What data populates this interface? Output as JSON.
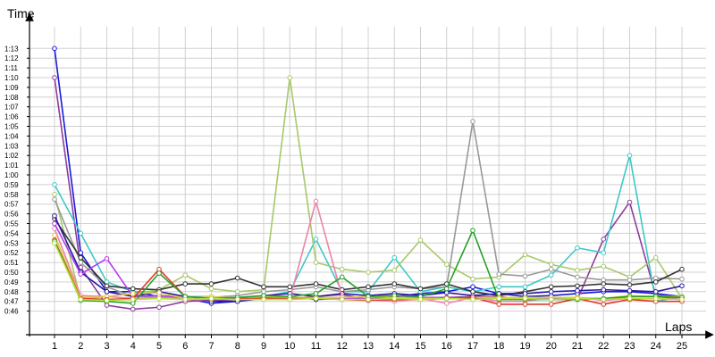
{
  "chart_data": {
    "type": "line",
    "xlabel": "Laps",
    "ylabel": "Time",
    "x": [
      1,
      2,
      3,
      4,
      5,
      6,
      7,
      8,
      9,
      10,
      11,
      12,
      13,
      14,
      15,
      16,
      17,
      18,
      19,
      20,
      21,
      22,
      23,
      24,
      25
    ],
    "y_ticks": [
      "0:46",
      "0:47",
      "0:48",
      "0:49",
      "0:50",
      "0:51",
      "0:52",
      "0:53",
      "0:54",
      "0:55",
      "0:56",
      "0:57",
      "0:58",
      "0:59",
      "1:00",
      "1:01",
      "1:02",
      "1:03",
      "1:04",
      "1:05",
      "1:06",
      "1:07",
      "1:08",
      "1:09",
      "1:10",
      "1:11",
      "1:12",
      "1:13"
    ],
    "ylim_seconds": [
      45,
      74
    ],
    "grid": true,
    "legend": "none",
    "series": [
      {
        "color": "#1a1ad8",
        "values": [
          73,
          52,
          48,
          48,
          47.5,
          47.3,
          46.8,
          47,
          47.3,
          47.5,
          47.2,
          47.3,
          47.2,
          47.5,
          47.8,
          48,
          48.5,
          47.8,
          47.5,
          47.6,
          47.8,
          48,
          48,
          47.8,
          47.5
        ]
      },
      {
        "color": "#8e3c9e",
        "values": [
          70,
          50.5,
          46.6,
          46.2,
          46.4,
          47,
          47.1,
          47.2,
          47.5,
          47.3,
          47.5,
          47.7,
          47.2,
          47.3,
          47.4,
          47.4,
          47.5,
          47.5,
          47.2,
          47.3,
          47.2,
          53.4,
          57.2,
          47.6,
          47.5
        ]
      },
      {
        "color": "#3cc8c8",
        "values": [
          59,
          54,
          49,
          48,
          48,
          47.5,
          47.5,
          47.3,
          47.5,
          48,
          53.4,
          48,
          48,
          51.5,
          48,
          48.5,
          48,
          48.5,
          48.5,
          49.7,
          52.5,
          52,
          62,
          47,
          47.5
        ]
      },
      {
        "color": "#a8c86a",
        "values": [
          58,
          47.2,
          47.5,
          47.8,
          48.2,
          49.7,
          48.3,
          48,
          48.2,
          70,
          51,
          50.3,
          50,
          50.2,
          53.3,
          50.8,
          49.3,
          49.5,
          51.8,
          50.8,
          50.2,
          50.6,
          49.5,
          51.5,
          47.3
        ]
      },
      {
        "color": "#999999",
        "values": [
          57.5,
          51,
          48.5,
          47.5,
          47.5,
          47.3,
          47.4,
          47.6,
          48,
          48.2,
          48.5,
          48,
          48.2,
          48.5,
          48.3,
          48.5,
          65.5,
          49.8,
          49.6,
          50.3,
          49.5,
          49.2,
          49.2,
          49.4,
          49.3
        ]
      },
      {
        "color": "#333333",
        "values": [
          55.5,
          51.5,
          48.6,
          48.3,
          48.2,
          48.8,
          48.8,
          49.4,
          48.5,
          48.5,
          48.8,
          48.2,
          48.5,
          48.8,
          48.3,
          48.8,
          48,
          47.6,
          48,
          48.5,
          48.6,
          48.8,
          48.7,
          49,
          50.3
        ]
      },
      {
        "color": "#2a1aa0",
        "values": [
          55.8,
          50,
          48,
          47.5,
          48,
          47.5,
          47,
          47,
          47.6,
          47.8,
          47.5,
          47.8,
          47.6,
          47.8,
          47.6,
          47.9,
          47.6,
          47.8,
          47.8,
          48,
          48.1,
          48.2,
          48.1,
          48,
          48.6
        ]
      },
      {
        "color": "#ee82aa",
        "values": [
          54.5,
          47.6,
          47.5,
          47.3,
          47.4,
          47.2,
          47.2,
          47.3,
          47.3,
          47.2,
          57.3,
          47.5,
          47.2,
          47,
          47.3,
          46.8,
          47.4,
          47,
          47,
          47.4,
          47.4,
          47.1,
          47.3,
          47.3,
          47.2
        ]
      },
      {
        "color": "#b43cf0",
        "values": [
          55,
          49.8,
          51.4,
          47.5,
          47.6,
          47.4,
          47.3,
          47.3,
          47.4,
          47.4,
          47.4,
          47.3,
          47.3,
          47.4,
          47.4,
          47.3,
          47.3,
          47.4,
          47.3,
          47.4,
          47.3,
          47.3,
          47.3,
          47.3,
          47.4
        ]
      },
      {
        "color": "#e0c84a",
        "values": [
          53.8,
          47.4,
          47.5,
          47.8,
          47.9,
          47.3,
          47.5,
          47.3,
          47.5,
          47.4,
          47.4,
          47.4,
          47.5,
          47.4,
          47.3,
          47.3,
          47.4,
          47.4,
          47.4,
          47.4,
          47.4,
          47.3,
          47.6,
          47.5,
          47.5
        ]
      },
      {
        "color": "#e0382a",
        "values": [
          53.3,
          47.3,
          47.2,
          47.3,
          50.3,
          47.5,
          47.3,
          47.3,
          47.3,
          47.3,
          47.3,
          47.2,
          47.1,
          47.2,
          47.2,
          47.3,
          47.4,
          46.7,
          46.7,
          46.7,
          47.3,
          46.7,
          47.2,
          47,
          47
        ]
      },
      {
        "color": "#28a028",
        "values": [
          53.2,
          47.1,
          47,
          46.8,
          49.9,
          47.5,
          47.3,
          47.4,
          47.6,
          47.5,
          47.8,
          49.5,
          47.5,
          47.6,
          47.5,
          48.3,
          54.3,
          47.2,
          47.2,
          47.2,
          47.2,
          47.3,
          47.5,
          47.5,
          47.4
        ]
      },
      {
        "color": "#b4e03c",
        "values": [
          53,
          47.2,
          47.1,
          47.2,
          47.3,
          47.2,
          47.3,
          47.2,
          47.2,
          47.2,
          47.3,
          47.2,
          47.2,
          47.3,
          47.2,
          47.3,
          47.2,
          47.3,
          47.3,
          47.2,
          47.3,
          47.2,
          47.3,
          47.3,
          47.2
        ]
      }
    ]
  }
}
